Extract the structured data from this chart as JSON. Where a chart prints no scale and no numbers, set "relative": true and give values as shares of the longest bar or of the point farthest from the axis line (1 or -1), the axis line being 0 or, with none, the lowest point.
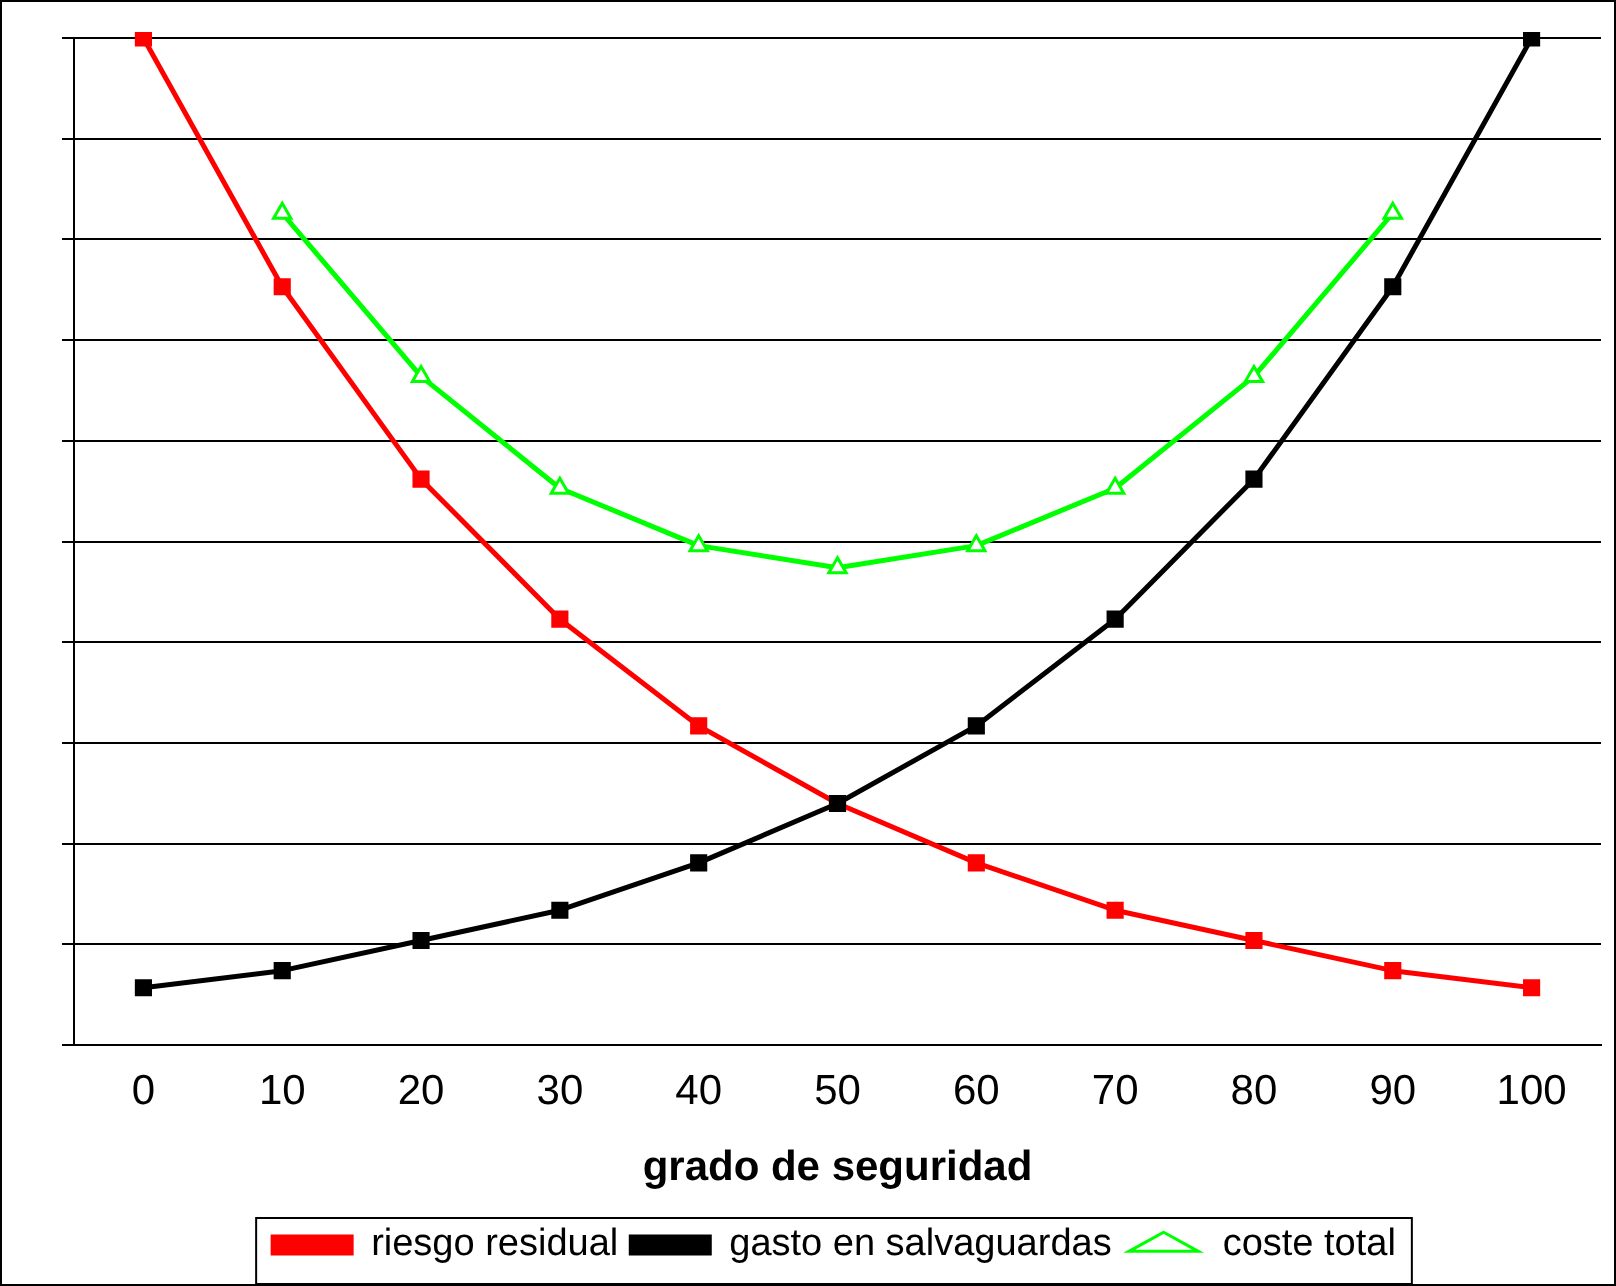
{
  "chart_data": {
    "type": "line",
    "relative": true,
    "xlabel": "grado de seguridad",
    "categories": [
      "0",
      "10",
      "20",
      "30",
      "40",
      "50",
      "60",
      "70",
      "80",
      "90",
      "100"
    ],
    "series": [
      {
        "name": "riesgo residual",
        "color": "#ff0000",
        "marker": "square",
        "values": [
          1.0,
          0.753,
          0.562,
          0.423,
          0.317,
          0.24,
          0.181,
          0.134,
          0.104,
          0.074,
          0.057
        ]
      },
      {
        "name": "gasto en salvaguardas",
        "color": "#000000",
        "marker": "square",
        "values": [
          0.057,
          0.074,
          0.104,
          0.134,
          0.181,
          0.24,
          0.317,
          0.423,
          0.562,
          0.753,
          1.0
        ]
      },
      {
        "name": "coste total",
        "color": "#00ff00",
        "marker": "triangle",
        "values": [
          null,
          0.826,
          0.664,
          0.553,
          0.496,
          0.474,
          0.496,
          0.553,
          0.664,
          0.826,
          null
        ]
      }
    ],
    "grid": "y",
    "legend": "bottom",
    "line_style": "solid"
  }
}
